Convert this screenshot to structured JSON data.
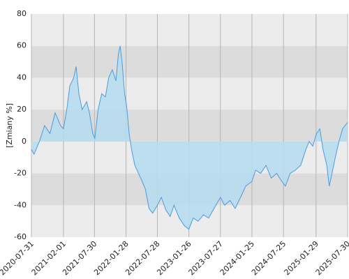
{
  "chart_data": {
    "type": "area",
    "ylabel": "[Zmiany %]",
    "x": [
      "2020-07-31",
      "2020-08-15",
      "2020-09-15",
      "2020-10-15",
      "2020-11-15",
      "2020-12-15",
      "2021-01-15",
      "2021-02-01",
      "2021-02-20",
      "2021-03-10",
      "2021-04-01",
      "2021-04-15",
      "2021-05-01",
      "2021-05-20",
      "2021-06-15",
      "2021-07-01",
      "2021-07-20",
      "2021-08-01",
      "2021-08-20",
      "2021-09-10",
      "2021-10-01",
      "2021-10-20",
      "2021-11-10",
      "2021-12-01",
      "2021-12-15",
      "2021-12-25",
      "2022-01-05",
      "2022-01-20",
      "2022-02-01",
      "2022-02-15",
      "2022-03-01",
      "2022-03-20",
      "2022-04-10",
      "2022-05-01",
      "2022-05-20",
      "2022-06-10",
      "2022-07-01",
      "2022-07-28",
      "2022-08-20",
      "2022-09-15",
      "2022-10-10",
      "2022-11-01",
      "2022-12-01",
      "2023-01-01",
      "2023-01-26",
      "2023-02-20",
      "2023-03-20",
      "2023-04-20",
      "2023-05-20",
      "2023-06-20",
      "2023-07-27",
      "2023-08-20",
      "2023-09-20",
      "2023-10-20",
      "2023-11-20",
      "2023-12-20",
      "2024-01-25",
      "2024-02-15",
      "2024-03-15",
      "2024-04-15",
      "2024-05-15",
      "2024-06-15",
      "2024-07-15",
      "2024-08-05",
      "2024-09-01",
      "2024-10-01",
      "2024-11-01",
      "2024-12-01",
      "2024-12-20",
      "2025-01-10",
      "2025-02-01",
      "2025-02-20",
      "2025-03-10",
      "2025-04-01",
      "2025-04-15",
      "2025-05-01",
      "2025-05-20",
      "2025-06-10",
      "2025-07-01",
      "2025-07-30"
    ],
    "series": [
      {
        "color": "#4b9be0",
        "fill": "#b4dcee",
        "values": [
          -5,
          -8,
          0,
          10,
          5,
          18,
          10,
          8,
          20,
          35,
          40,
          47,
          30,
          20,
          25,
          18,
          5,
          2,
          20,
          30,
          28,
          40,
          45,
          38,
          55,
          60,
          50,
          30,
          22,
          5,
          -5,
          -15,
          -20,
          -25,
          -30,
          -42,
          -45,
          -40,
          -35,
          -43,
          -47,
          -40,
          -48,
          -53,
          -55,
          -48,
          -50,
          -46,
          -48,
          -42,
          -35,
          -40,
          -37,
          -42,
          -35,
          -28,
          -25,
          -18,
          -20,
          -15,
          -23,
          -20,
          -25,
          -28,
          -20,
          -18,
          -15,
          -5,
          0,
          -3,
          5,
          8,
          -5,
          -15,
          -28,
          -20,
          -10,
          0,
          8,
          12
        ]
      }
    ],
    "xlim": [
      "2020-07-31",
      "2025-07-30"
    ],
    "xticks": [
      "2020-07-31",
      "2021-02-01",
      "2021-07-30",
      "2022-01-28",
      "2022-07-28",
      "2023-01-26",
      "2023-07-27",
      "2024-01-25",
      "2024-07-25",
      "2025-01-29",
      "2025-07-30"
    ],
    "ylim": [
      -60,
      80
    ],
    "yticks": [
      -60,
      -40,
      -20,
      0,
      20,
      40,
      60,
      80
    ],
    "grid": true
  }
}
